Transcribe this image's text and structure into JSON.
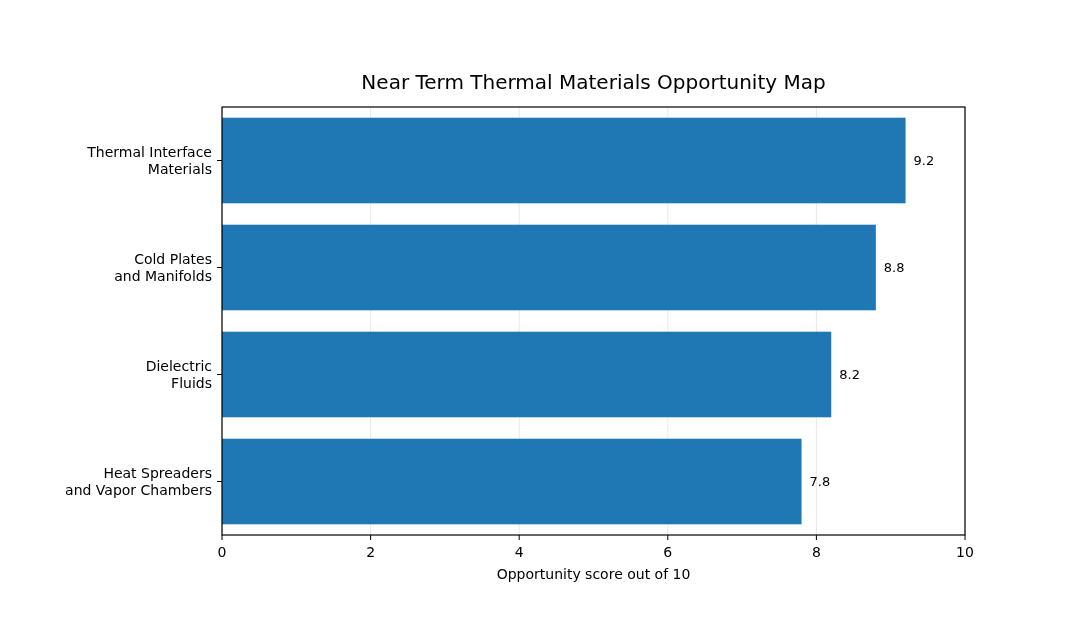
{
  "chart_data": {
    "type": "bar",
    "orientation": "horizontal",
    "title": "Near Term Thermal Materials Opportunity Map",
    "xlabel": "Opportunity score out of 10",
    "categories": [
      "Thermal Interface\nMaterials",
      "Cold Plates\nand Manifolds",
      "Dielectric\nFluids",
      "Heat Spreaders\nand Vapor Chambers"
    ],
    "values": [
      9.2,
      8.8,
      8.2,
      7.8
    ],
    "color": "#1f77b4",
    "xlim": [
      0,
      10
    ],
    "xticks": [
      0,
      2,
      4,
      6,
      8,
      10
    ],
    "grid": "x",
    "data_labels": true
  }
}
